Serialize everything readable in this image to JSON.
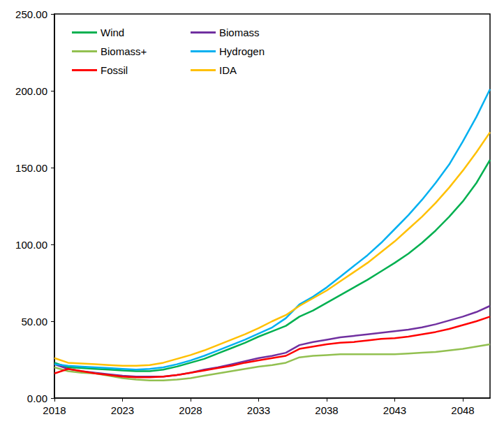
{
  "chart_data": {
    "type": "line",
    "x": [
      2018,
      2019,
      2020,
      2021,
      2022,
      2023,
      2024,
      2025,
      2026,
      2027,
      2028,
      2029,
      2030,
      2031,
      2032,
      2033,
      2034,
      2035,
      2036,
      2037,
      2038,
      2039,
      2040,
      2041,
      2042,
      2043,
      2044,
      2045,
      2046,
      2047,
      2048,
      2049,
      2050
    ],
    "xlim": [
      2018,
      2050
    ],
    "xticks": [
      2018,
      2023,
      2028,
      2033,
      2038,
      2043,
      2048
    ],
    "ylim": [
      0,
      250
    ],
    "yticks": [
      {
        "value": 0,
        "label": "0.00"
      },
      {
        "value": 50,
        "label": "50.00"
      },
      {
        "value": 100,
        "label": "100.00"
      },
      {
        "value": 150,
        "label": "150.00"
      },
      {
        "value": 200,
        "label": "200.00"
      },
      {
        "value": 250,
        "label": "250.00"
      }
    ],
    "grid": false,
    "legend": "upper left",
    "series": [
      {
        "name": "Wind",
        "color": "#00b050",
        "values": [
          23,
          20,
          19.5,
          19,
          18.5,
          18,
          17.5,
          17.5,
          18.5,
          20.5,
          23,
          25.5,
          29,
          32.5,
          36,
          40,
          43.5,
          47,
          53,
          57,
          62,
          67,
          72,
          77,
          82.5,
          88,
          94,
          101,
          109,
          118,
          128,
          140,
          155
        ]
      },
      {
        "name": "Biomass",
        "color": "#7030a0",
        "values": [
          22,
          19,
          17.5,
          16.5,
          15.5,
          14.5,
          14,
          14,
          14,
          15,
          16.5,
          18.5,
          20,
          22,
          24,
          26,
          27.5,
          29.5,
          34.5,
          36.5,
          38,
          39.5,
          40.5,
          41.5,
          42.5,
          43.5,
          44.5,
          46,
          48,
          50.5,
          53,
          56,
          60
        ]
      },
      {
        "name": "Biomass+",
        "color": "#92c050",
        "values": [
          20,
          17.5,
          16.5,
          16,
          14.5,
          13,
          12,
          11.5,
          11.5,
          12,
          13,
          14.5,
          16,
          17.5,
          19,
          20.5,
          21.5,
          23,
          26.5,
          27.5,
          28,
          28.5,
          28.5,
          28.5,
          28.5,
          28.5,
          29,
          29.5,
          30,
          31,
          32,
          33.5,
          35
        ]
      },
      {
        "name": "Hydrogen",
        "color": "#00b0f0",
        "values": [
          22,
          21,
          20.5,
          20,
          19.5,
          19,
          18.5,
          19,
          20,
          22,
          24.5,
          27.5,
          31,
          34.5,
          38,
          42,
          46,
          52,
          61,
          66,
          72,
          79,
          86,
          93,
          101,
          110,
          119,
          129,
          140,
          152,
          167,
          183,
          201
        ]
      },
      {
        "name": "Fossil",
        "color": "#ff0000",
        "values": [
          16,
          19,
          17.5,
          16,
          15,
          14,
          13.5,
          13.5,
          14,
          15,
          16.5,
          18,
          19.5,
          21,
          23,
          24.5,
          26,
          27.5,
          32,
          33.5,
          35,
          36,
          36.5,
          37.5,
          38.5,
          39,
          40,
          41.5,
          43,
          45,
          47.5,
          50,
          53
        ]
      },
      {
        "name": "IDA",
        "color": "#ffc000",
        "values": [
          26,
          23,
          22.5,
          22,
          21.5,
          21,
          21,
          21.5,
          23,
          25.5,
          28,
          31,
          34.5,
          38,
          41.5,
          45.5,
          50,
          54,
          60,
          65,
          70,
          76,
          82,
          88,
          95,
          102,
          110,
          118,
          127,
          137,
          148,
          160,
          173
        ]
      }
    ]
  }
}
